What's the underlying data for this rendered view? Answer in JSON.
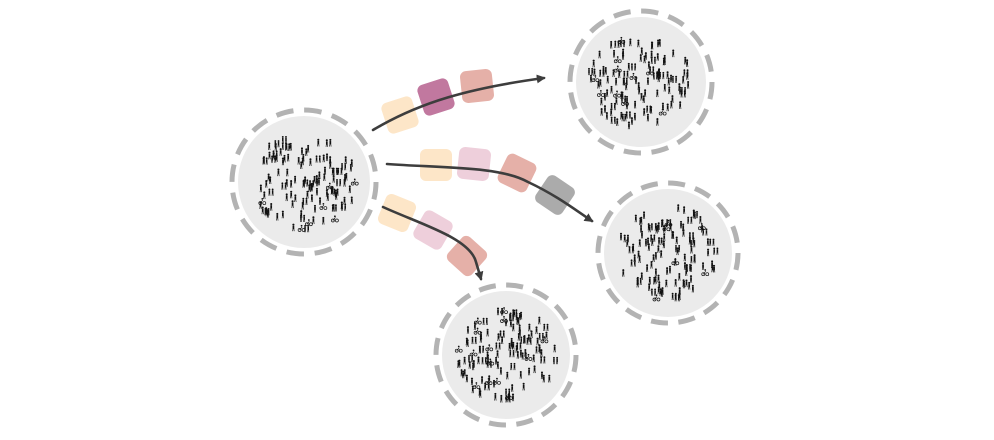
{
  "colors": {
    "background": "#ffffff",
    "population_fill": "#ebebeb",
    "population_ring": "#b3b3b3",
    "arrow": "#3d3d3d",
    "person": "#111111"
  },
  "populations": [
    {
      "id": "source",
      "role": "source",
      "people_count": 120
    },
    {
      "id": "target-top",
      "role": "target",
      "people_count": 120
    },
    {
      "id": "target-middle",
      "role": "target",
      "people_count": 120
    },
    {
      "id": "target-bottom",
      "role": "target",
      "people_count": 120
    }
  ],
  "flows": [
    {
      "id": "flow-top",
      "from": "source",
      "to": "target-top",
      "token_colors": [
        "#fde6c8",
        "#c1789f",
        "#e5b0a8"
      ]
    },
    {
      "id": "flow-middle",
      "from": "source",
      "to": "target-middle",
      "token_colors": [
        "#fde6c8",
        "#eecfdb",
        "#e5b0a8",
        "#ababab"
      ]
    },
    {
      "id": "flow-bottom",
      "from": "source",
      "to": "target-bottom",
      "token_colors": [
        "#fde6c8",
        "#eecfdb",
        "#e5b0a8"
      ]
    }
  ]
}
